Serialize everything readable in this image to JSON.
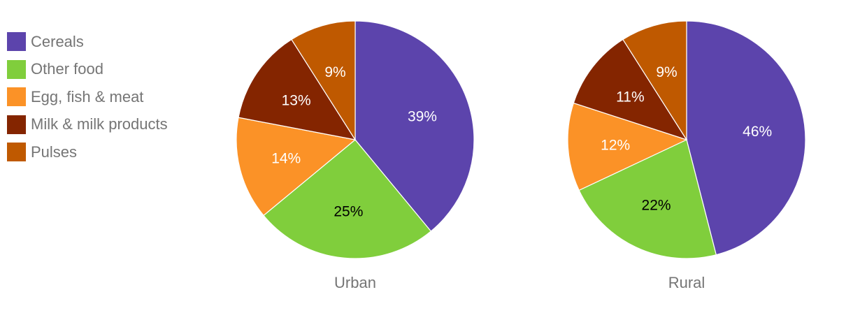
{
  "chart_data": [
    {
      "type": "pie",
      "xlabel": "Urban",
      "categories": [
        "Cereals",
        "Other food",
        "Egg, fish & meat",
        "Milk & milk products",
        "Pulses"
      ],
      "values": [
        39,
        25,
        14,
        13,
        9
      ],
      "value_labels": [
        "39%",
        "25%",
        "14%",
        "13%",
        "9%"
      ],
      "label_colors": [
        "#ffffff",
        "#000000",
        "#ffffff",
        "#ffffff",
        "#ffffff"
      ]
    },
    {
      "type": "pie",
      "xlabel": "Rural",
      "categories": [
        "Cereals",
        "Other food",
        "Egg, fish & meat",
        "Milk & milk products",
        "Pulses"
      ],
      "values": [
        46,
        22,
        12,
        11,
        9
      ],
      "value_labels": [
        "46%",
        "22%",
        "12%",
        "11%",
        "9%"
      ],
      "label_colors": [
        "#ffffff",
        "#000000",
        "#ffffff",
        "#ffffff",
        "#ffffff"
      ]
    }
  ],
  "legend": {
    "placement": "left",
    "items": [
      {
        "label": "Cereals",
        "color": "#5c44ac"
      },
      {
        "label": "Other food",
        "color": "#80ce3c"
      },
      {
        "label": "Egg, fish & meat",
        "color": "#fb9227"
      },
      {
        "label": "Milk & milk products",
        "color": "#842500"
      },
      {
        "label": "Pulses",
        "color": "#bf5900"
      }
    ]
  }
}
